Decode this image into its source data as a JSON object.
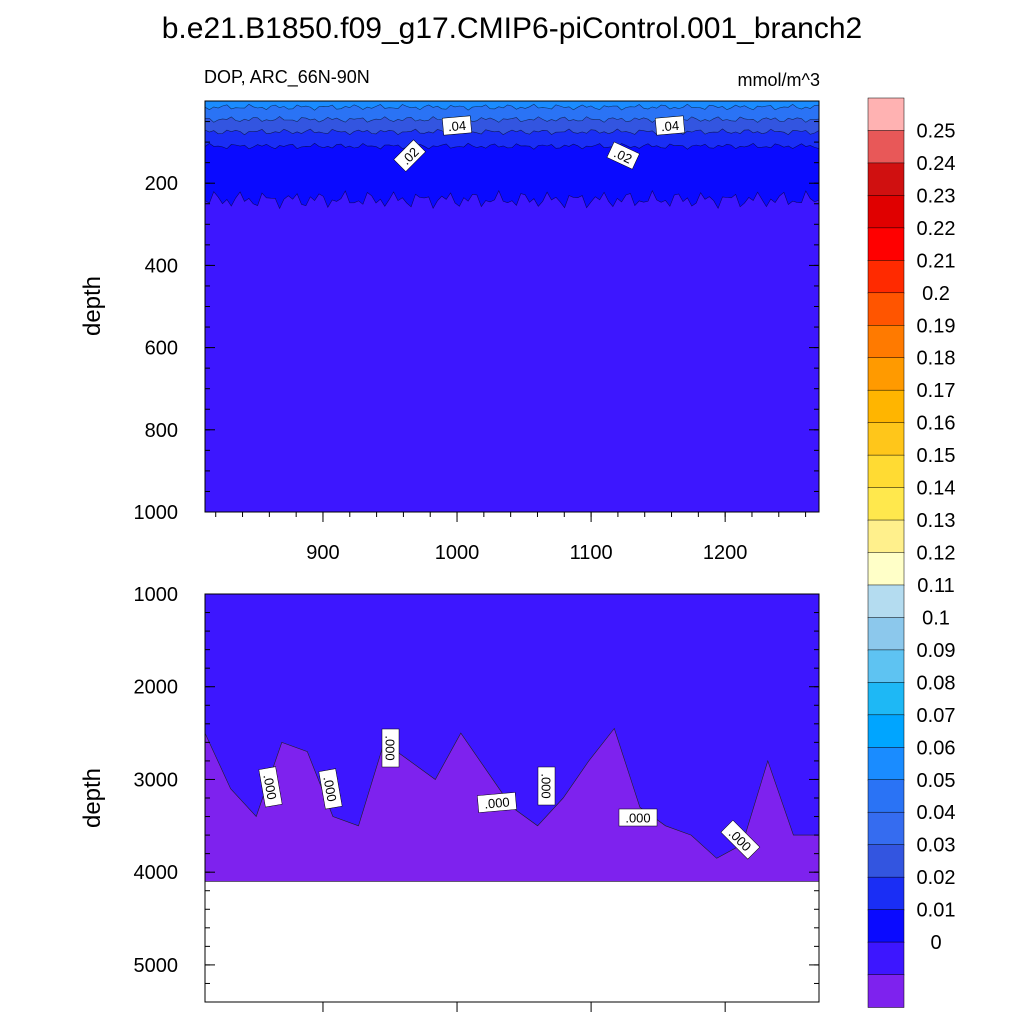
{
  "title": "b.e21.B1850.f09_g17.CMIP6-piControl.001_branch2",
  "subtitle_left": "DOP, ARC_66N-90N",
  "subtitle_right": "mmol/m^3",
  "chart_data": [
    {
      "type": "contour",
      "panel": "upper",
      "ylabel": "depth",
      "x_range": [
        812,
        1270
      ],
      "x_ticks": [
        "900",
        "1000",
        "1100",
        "1200"
      ],
      "y_range": [
        0,
        1000
      ],
      "y_reversed": true,
      "y_ticks": [
        "200",
        "400",
        "600",
        "800",
        "1000"
      ],
      "levels_shown": [
        {
          "depth_top": 0,
          "depth_bottom": 15,
          "value_range": "0.05-0.06"
        },
        {
          "depth_top": 15,
          "depth_bottom": 45,
          "value_range": "0.04-0.05"
        },
        {
          "depth_top": 45,
          "depth_bottom": 75,
          "value_range": "0.03-0.04"
        },
        {
          "depth_top": 75,
          "depth_bottom": 110,
          "value_range": "0.02-0.03"
        },
        {
          "depth_top": 110,
          "depth_bottom": 240,
          "value_range": "0.01-0.02"
        },
        {
          "depth_top": 240,
          "depth_bottom": 1000,
          "value_range": "0-0.01"
        }
      ],
      "contour_labels": [
        ".04",
        ".02",
        ".04",
        ".02"
      ]
    },
    {
      "type": "contour",
      "panel": "lower",
      "ylabel": "depth",
      "x_range": [
        812,
        1270
      ],
      "y_range": [
        1000,
        5400
      ],
      "y_reversed": true,
      "y_ticks": [
        "1000",
        "2000",
        "3000",
        "4000",
        "5000"
      ],
      "bottom_depth": 4100,
      "boundary_depths": [
        2500,
        3100,
        3400,
        2600,
        2700,
        3400,
        3500,
        2600,
        2800,
        3000,
        2500,
        2900,
        3300,
        3500,
        3200,
        2800,
        2450,
        3300,
        3500,
        3600,
        3850,
        3700,
        2800,
        3600,
        3600
      ],
      "levels_shown": [
        {
          "region": "above boundary",
          "value_range": "0-0.01"
        },
        {
          "region": "below boundary",
          "value_range": "< 0"
        }
      ],
      "contour_labels": [
        ".000",
        ".000",
        ".000",
        ".000",
        ".000",
        ".000",
        ".000"
      ]
    }
  ],
  "colorbar": {
    "tick_labels": [
      "0.25",
      "0.24",
      "0.23",
      "0.22",
      "0.21",
      "0.2",
      "0.19",
      "0.18",
      "0.17",
      "0.16",
      "0.15",
      "0.14",
      "0.13",
      "0.12",
      "0.11",
      "0.1",
      "0.09",
      "0.08",
      "0.07",
      "0.06",
      "0.05",
      "0.04",
      "0.03",
      "0.02",
      "0.01",
      "0"
    ],
    "colors": [
      "#ffb2b2",
      "#e85858",
      "#d01010",
      "#e00000",
      "#ff0000",
      "#ff2a00",
      "#ff5500",
      "#ff7a00",
      "#ff9a00",
      "#ffb500",
      "#ffc61a",
      "#ffdb33",
      "#ffe84d",
      "#fff08c",
      "#ffffc8",
      "#b4dcf0",
      "#8cc8ec",
      "#5ec3f2",
      "#1eb8f5",
      "#00a5ff",
      "#1a8cff",
      "#2a73f5",
      "#356cf0",
      "#3355e0",
      "#1a2ef5",
      "#0a0aff",
      "#3d16ff",
      "#7e22ee"
    ]
  }
}
